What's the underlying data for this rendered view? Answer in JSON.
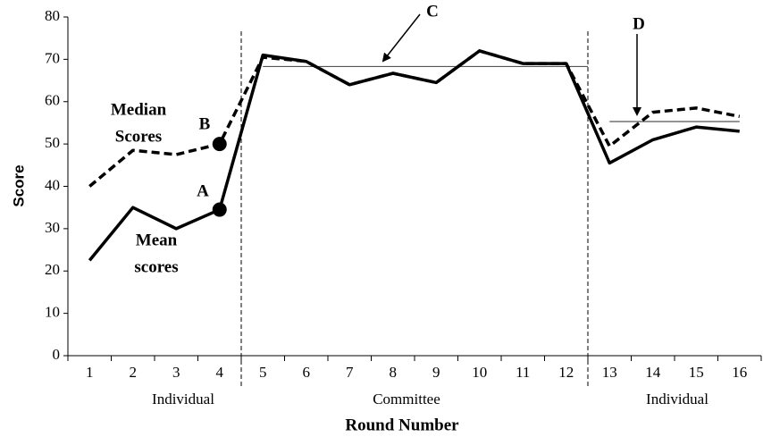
{
  "chart_data": {
    "type": "line",
    "y_label": "Score",
    "x_label": "Round Number",
    "categories": [
      "1",
      "2",
      "3",
      "4",
      "5",
      "6",
      "7",
      "8",
      "9",
      "10",
      "11",
      "12",
      "13",
      "14",
      "15",
      "16"
    ],
    "series": [
      {
        "name": "Mean",
        "color": "#000000",
        "dashed": false,
        "values": [
          22.5,
          35,
          30,
          34.5,
          71,
          69.5,
          64,
          66.7,
          64.5,
          72,
          69,
          69,
          45.5,
          51,
          54,
          53
        ]
      },
      {
        "name": "Median",
        "color": "#000000",
        "dashed": true,
        "values": [
          40,
          48.5,
          47.5,
          50,
          70.5,
          69.5,
          64,
          66.7,
          64.5,
          72,
          69,
          69,
          49.5,
          57.5,
          58.5,
          56.5
        ]
      }
    ],
    "ylim": [
      0,
      80
    ],
    "yticks": [
      0,
      10,
      20,
      30,
      40,
      50,
      60,
      70,
      80
    ],
    "phase_breaks": [
      4.5,
      12.5
    ],
    "phases": [
      "Individual",
      "Committee",
      "Individual"
    ],
    "reference_lines": [
      {
        "value": 68.3,
        "from": 5,
        "to": 12.5
      },
      {
        "value": 55.3,
        "from": 13,
        "to": 16
      }
    ],
    "annotations": [
      {
        "text": [
          "Median",
          "Scores"
        ]
      },
      {
        "text": [
          "Mean",
          "scores"
        ]
      },
      {
        "text": [
          "A"
        ]
      },
      {
        "text": [
          "B"
        ]
      },
      {
        "text": [
          "C"
        ]
      },
      {
        "text": [
          "D"
        ]
      }
    ]
  }
}
